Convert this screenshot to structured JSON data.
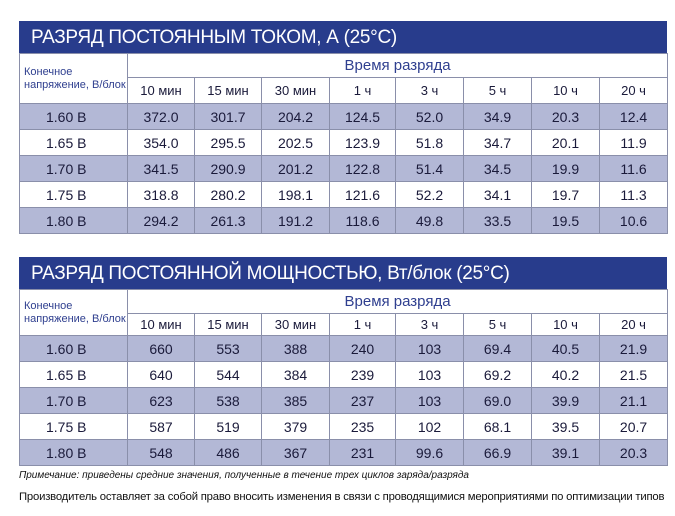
{
  "table1": {
    "title": "РАЗРЯД ПОСТОЯННЫМ ТОКОМ, А (25°C)",
    "voltage_header": "Конечное напряжение, В/блок",
    "time_header": "Время разряда",
    "durations": [
      "10 мин",
      "15 мин",
      "30 мин",
      "1 ч",
      "3 ч",
      "5 ч",
      "10 ч",
      "20 ч"
    ],
    "rows": [
      {
        "voltage": "1.60 В",
        "values": [
          "372.0",
          "301.7",
          "204.2",
          "124.5",
          "52.0",
          "34.9",
          "20.3",
          "12.4"
        ]
      },
      {
        "voltage": "1.65 В",
        "values": [
          "354.0",
          "295.5",
          "202.5",
          "123.9",
          "51.8",
          "34.7",
          "20.1",
          "11.9"
        ]
      },
      {
        "voltage": "1.70 В",
        "values": [
          "341.5",
          "290.9",
          "201.2",
          "122.8",
          "51.4",
          "34.5",
          "19.9",
          "11.6"
        ]
      },
      {
        "voltage": "1.75 В",
        "values": [
          "318.8",
          "280.2",
          "198.1",
          "121.6",
          "52.2",
          "34.1",
          "19.7",
          "11.3"
        ]
      },
      {
        "voltage": "1.80 В",
        "values": [
          "294.2",
          "261.3",
          "191.2",
          "118.6",
          "49.8",
          "33.5",
          "19.5",
          "10.6"
        ]
      }
    ]
  },
  "table2": {
    "title": "РАЗРЯД ПОСТОЯННОЙ МОЩНОСТЬЮ, Вт/блок (25°C)",
    "voltage_header": "Конечное напряжение, В/блок",
    "time_header": "Время разряда",
    "durations": [
      "10 мин",
      "15 мин",
      "30 мин",
      "1 ч",
      "3 ч",
      "5 ч",
      "10 ч",
      "20 ч"
    ],
    "rows": [
      {
        "voltage": "1.60 В",
        "values": [
          "660",
          "553",
          "388",
          "240",
          "103",
          "69.4",
          "40.5",
          "21.9"
        ]
      },
      {
        "voltage": "1.65 В",
        "values": [
          "640",
          "544",
          "384",
          "239",
          "103",
          "69.2",
          "40.2",
          "21.5"
        ]
      },
      {
        "voltage": "1.70 В",
        "values": [
          "623",
          "538",
          "385",
          "237",
          "103",
          "69.0",
          "39.9",
          "21.1"
        ]
      },
      {
        "voltage": "1.75 В",
        "values": [
          "587",
          "519",
          "379",
          "235",
          "102",
          "68.1",
          "39.5",
          "20.7"
        ]
      },
      {
        "voltage": "1.80 В",
        "values": [
          "548",
          "486",
          "367",
          "231",
          "99.6",
          "66.9",
          "39.1",
          "20.3"
        ]
      }
    ]
  },
  "note": "Примечание: приведены средние значения, полученные в течение трех циклов заряда/разряда",
  "disclaimer": "Производитель оставляет за собой право вносить изменения в связи с проводящимися мероприятиями по оптимизации типов",
  "colors": {
    "banner": "#283c8c",
    "row_shade": "#b3b8d6",
    "header_text": "#2f3f8f"
  }
}
